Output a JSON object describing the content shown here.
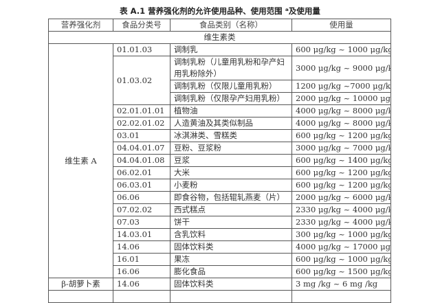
{
  "title": "表 A.1  营养强化剂的允许使用品种、使用范围 ᵃ及使用量",
  "headers": [
    "营养强化剂",
    "食品分类号",
    "食品类别（名称）",
    "使用量"
  ],
  "section": "维生素类",
  "groups": [
    {
      "nutrient": "维生素 A",
      "rows": [
        {
          "code": "01.01.03",
          "food": "调制乳",
          "amount": "600 μg/kg ~ 1000 μg/kg"
        },
        {
          "code": "01.03.02",
          "food": "调制乳粉（儿童用乳粉和孕产妇用乳粉除外）",
          "amount": "3000 μg/kg ~ 9000 μg/kg"
        },
        {
          "code": "01.03.02",
          "food": "调制乳粉（仅限儿童用乳粉）",
          "amount": "1200 μg/kg ~7000 μg/kg"
        },
        {
          "code": "01.03.02",
          "food": "调制乳粉（仅限孕产妇用乳粉）",
          "amount": "2000 μg/kg ~ 10000 μg/kg"
        },
        {
          "code": "02.01.01.01",
          "food": "植物油",
          "amount": "4000 μg/kg ~ 8000 μg/kg"
        },
        {
          "code": "02.02.01.02",
          "food": "人造黄油及其类似制品",
          "amount": "4000 μg/kg ~ 8000 μg/kg"
        },
        {
          "code": "03.01",
          "food": "冰淇淋类、雪糕类",
          "amount": "600 μg/kg ~ 1200 μg/kg"
        },
        {
          "code": "04.04.01.07",
          "food": "豆粉、豆浆粉",
          "amount": "3000 μg/kg ~ 7000 μg/kg"
        },
        {
          "code": "04.04.01.08",
          "food": "豆浆",
          "amount": "600 μg/kg ~ 1400 μg/kg"
        },
        {
          "code": "06.02.01",
          "food": "大米",
          "amount": "600 μg/kg ~ 1200 μg/kg"
        },
        {
          "code": "06.03.01",
          "food": "小麦粉",
          "amount": "600 μg/kg ~ 1200 μg/kg"
        },
        {
          "code": "06.06",
          "food": "即食谷物，包括辊轧燕麦（片）",
          "amount": "2000 μg/kg ~ 6000 μg/kg"
        },
        {
          "code": "07.02.02",
          "food": "西式糕点",
          "amount": "2330 μg/kg ~ 4000 μg/kg"
        },
        {
          "code": "07.03",
          "food": "饼干",
          "amount": "2330 μg/kg ~ 4000 μg/kg"
        },
        {
          "code": "14.03.01",
          "food": "含乳饮料",
          "amount": "300 μg/kg ~ 1000 μg/kg"
        },
        {
          "code": "14.06",
          "food": "固体饮料类",
          "amount": "4000 μg/kg ~ 17000 μg/kg"
        },
        {
          "code": "16.01",
          "food": "果冻",
          "amount": "600 μg/kg ~ 1000 μg/kg"
        },
        {
          "code": "16.06",
          "food": "膨化食品",
          "amount": "600 μg/kg ~ 1500 μg/kg"
        }
      ]
    },
    {
      "nutrient": "β-胡萝卜素",
      "rows": [
        {
          "code": "14.06",
          "food": "固体饮料类",
          "amount": "3 mg /kg ~ 6 mg /kg"
        }
      ]
    }
  ]
}
